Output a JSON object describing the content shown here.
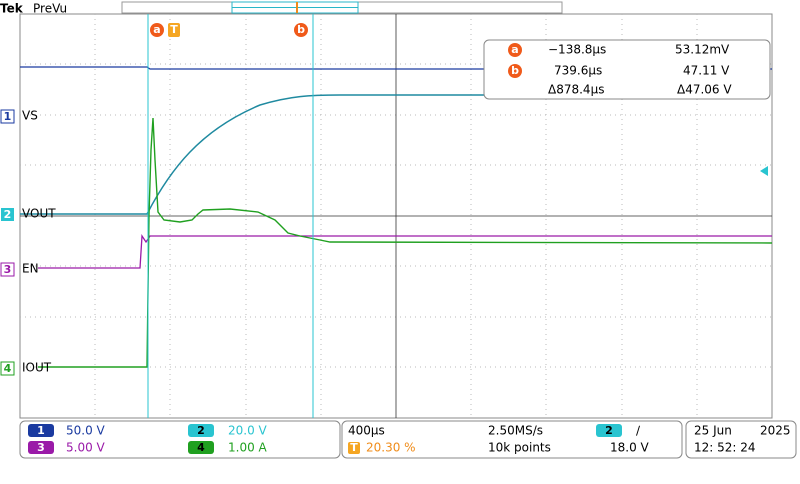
{
  "header": {
    "brand": "Tek",
    "mode": "PreVu"
  },
  "cursor_labels": {
    "a": "a",
    "b": "b",
    "trigger": "T"
  },
  "readout": {
    "rows": [
      {
        "marker": "a",
        "time": "−138.8µs",
        "value": "53.12mV"
      },
      {
        "marker": "b",
        "time": "739.6µs",
        "value": "47.11 V"
      },
      {
        "time": "Δ878.4µs",
        "value": "Δ47.06 V"
      }
    ]
  },
  "channels": [
    {
      "number": "1",
      "label": "VS",
      "scale": "50.0 V"
    },
    {
      "number": "2",
      "label": "VOUT",
      "scale": "20.0 V"
    },
    {
      "number": "3",
      "label": "EN",
      "scale": "5.00 V"
    },
    {
      "number": "4",
      "label": "IOUT",
      "scale": "1.00 A"
    }
  ],
  "status": {
    "timebase": "400µs",
    "sample_rate": "2.50MS/s",
    "trigger_source": "2",
    "trigger_slope": "∕",
    "trigger_icon": "T",
    "trigger_position": "20.30 %",
    "record_length": "10k points",
    "trigger_level": "18.0 V",
    "date": "25 Jun",
    "year": "2025",
    "time": "12: 52: 24"
  }
}
